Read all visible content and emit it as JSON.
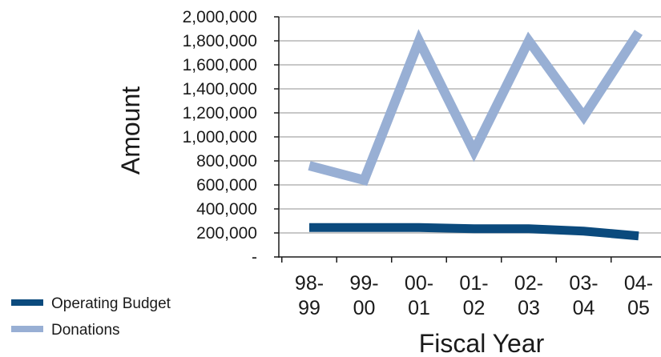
{
  "chart_data": {
    "type": "line",
    "title": "",
    "xlabel": "Fiscal Year",
    "ylabel": "Amount",
    "categories": [
      "98-99",
      "99-00",
      "00-01",
      "01-02",
      "02-03",
      "03-04",
      "04-05"
    ],
    "category_lines": [
      [
        "98-",
        "99"
      ],
      [
        "99-",
        "00"
      ],
      [
        "00-",
        "01"
      ],
      [
        "01-",
        "02"
      ],
      [
        "02-",
        "03"
      ],
      [
        "03-",
        "04"
      ],
      [
        "04-",
        "05"
      ]
    ],
    "ylim": [
      0,
      2000000
    ],
    "ytick_values": [
      0,
      200000,
      400000,
      600000,
      800000,
      1000000,
      1200000,
      1400000,
      1600000,
      1800000,
      2000000
    ],
    "ytick_labels": [
      "-",
      "200,000",
      "400,000",
      "600,000",
      "800,000",
      "1,000,000",
      "1,200,000",
      "1,400,000",
      "1,600,000",
      "1,800,000",
      "2,000,000"
    ],
    "grid": true,
    "legend_position": "bottom-left",
    "series": [
      {
        "name": "Operating Budget",
        "color": "#0b4a7d",
        "values": [
          245000,
          245000,
          245000,
          235000,
          235000,
          215000,
          175000
        ]
      },
      {
        "name": "Donations",
        "color": "#98afd4",
        "values": [
          760000,
          640000,
          1800000,
          880000,
          1800000,
          1170000,
          1870000
        ]
      }
    ]
  }
}
